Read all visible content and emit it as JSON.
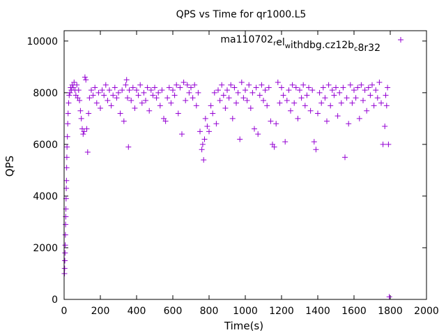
{
  "chart_data": {
    "type": "scatter",
    "title": "QPS vs Time for qr1000.L5",
    "xlabel": "Time(s)",
    "ylabel": "QPS",
    "xlim": [
      0,
      2000
    ],
    "ylim": [
      0,
      10400
    ],
    "xticks": [
      0,
      200,
      400,
      600,
      800,
      1000,
      1200,
      1400,
      1600,
      1800,
      2000
    ],
    "yticks": [
      0,
      2000,
      4000,
      6000,
      8000,
      10000
    ],
    "grid": false,
    "legend_position": "top-right",
    "marker": "plus",
    "series": [
      {
        "name_parts": [
          {
            "text": "ma110702",
            "sub": false
          },
          {
            "text": "r",
            "sub": true
          },
          {
            "text": "el",
            "sub": false
          },
          {
            "text": "w",
            "sub": true
          },
          {
            "text": "ithdbg.cz12b",
            "sub": false
          },
          {
            "text": "c",
            "sub": true
          },
          {
            "text": "8r32",
            "sub": false
          }
        ],
        "color": "#9400d3",
        "points": [
          [
            2,
            1000
          ],
          [
            3,
            1200
          ],
          [
            4,
            1500
          ],
          [
            5,
            1800
          ],
          [
            6,
            2100
          ],
          [
            7,
            2500
          ],
          [
            8,
            2900
          ],
          [
            9,
            3200
          ],
          [
            10,
            3500
          ],
          [
            11,
            3900
          ],
          [
            12,
            4300
          ],
          [
            13,
            4600
          ],
          [
            14,
            5100
          ],
          [
            15,
            5500
          ],
          [
            16,
            5900
          ],
          [
            18,
            6300
          ],
          [
            20,
            6800
          ],
          [
            22,
            7200
          ],
          [
            25,
            7600
          ],
          [
            28,
            7900
          ],
          [
            32,
            8000
          ],
          [
            36,
            8200
          ],
          [
            40,
            8100
          ],
          [
            45,
            8300
          ],
          [
            50,
            8200
          ],
          [
            55,
            8400
          ],
          [
            60,
            8100
          ],
          [
            65,
            7900
          ],
          [
            70,
            8300
          ],
          [
            75,
            7800
          ],
          [
            80,
            8100
          ],
          [
            85,
            7700
          ],
          [
            90,
            7300
          ],
          [
            95,
            7000
          ],
          [
            100,
            6600
          ],
          [
            105,
            6400
          ],
          [
            110,
            6500
          ],
          [
            115,
            8600
          ],
          [
            120,
            8500
          ],
          [
            125,
            6600
          ],
          [
            130,
            5700
          ],
          [
            135,
            7200
          ],
          [
            140,
            7800
          ],
          [
            150,
            8100
          ],
          [
            160,
            7900
          ],
          [
            170,
            8200
          ],
          [
            180,
            7600
          ],
          [
            190,
            8000
          ],
          [
            200,
            7400
          ],
          [
            210,
            8100
          ],
          [
            220,
            7900
          ],
          [
            230,
            8300
          ],
          [
            240,
            7700
          ],
          [
            250,
            8100
          ],
          [
            260,
            7500
          ],
          [
            270,
            7900
          ],
          [
            280,
            8200
          ],
          [
            290,
            7800
          ],
          [
            300,
            8000
          ],
          [
            310,
            7200
          ],
          [
            320,
            8100
          ],
          [
            330,
            6900
          ],
          [
            340,
            8300
          ],
          [
            345,
            8500
          ],
          [
            350,
            7800
          ],
          [
            355,
            5900
          ],
          [
            360,
            8100
          ],
          [
            370,
            7700
          ],
          [
            380,
            8200
          ],
          [
            390,
            7400
          ],
          [
            400,
            8100
          ],
          [
            410,
            7900
          ],
          [
            420,
            8300
          ],
          [
            430,
            7600
          ],
          [
            440,
            8000
          ],
          [
            450,
            7700
          ],
          [
            460,
            8200
          ],
          [
            470,
            7300
          ],
          [
            480,
            8100
          ],
          [
            490,
            7900
          ],
          [
            500,
            8200
          ],
          [
            510,
            7800
          ],
          [
            520,
            8000
          ],
          [
            530,
            7500
          ],
          [
            540,
            8100
          ],
          [
            550,
            7000
          ],
          [
            560,
            6900
          ],
          [
            570,
            7800
          ],
          [
            580,
            8200
          ],
          [
            590,
            7600
          ],
          [
            600,
            8100
          ],
          [
            610,
            7900
          ],
          [
            620,
            8300
          ],
          [
            630,
            7200
          ],
          [
            640,
            8200
          ],
          [
            650,
            6400
          ],
          [
            660,
            8400
          ],
          [
            670,
            7700
          ],
          [
            680,
            8300
          ],
          [
            690,
            8000
          ],
          [
            700,
            8200
          ],
          [
            710,
            7800
          ],
          [
            720,
            8300
          ],
          [
            730,
            7500
          ],
          [
            740,
            8000
          ],
          [
            750,
            6500
          ],
          [
            760,
            5800
          ],
          [
            765,
            6000
          ],
          [
            770,
            5400
          ],
          [
            775,
            6200
          ],
          [
            780,
            7000
          ],
          [
            790,
            6700
          ],
          [
            800,
            6500
          ],
          [
            810,
            7500
          ],
          [
            820,
            7200
          ],
          [
            830,
            8000
          ],
          [
            840,
            6800
          ],
          [
            850,
            8100
          ],
          [
            860,
            7700
          ],
          [
            870,
            8300
          ],
          [
            880,
            7900
          ],
          [
            890,
            7400
          ],
          [
            900,
            8100
          ],
          [
            910,
            7800
          ],
          [
            920,
            8300
          ],
          [
            930,
            7000
          ],
          [
            940,
            8200
          ],
          [
            950,
            7600
          ],
          [
            960,
            8000
          ],
          [
            970,
            6200
          ],
          [
            980,
            8400
          ],
          [
            990,
            7800
          ],
          [
            1000,
            8100
          ],
          [
            1010,
            7700
          ],
          [
            1020,
            8300
          ],
          [
            1030,
            7400
          ],
          [
            1040,
            8000
          ],
          [
            1050,
            6600
          ],
          [
            1060,
            8200
          ],
          [
            1070,
            6400
          ],
          [
            1080,
            7900
          ],
          [
            1090,
            8300
          ],
          [
            1100,
            7700
          ],
          [
            1110,
            8100
          ],
          [
            1120,
            7500
          ],
          [
            1130,
            8200
          ],
          [
            1140,
            6900
          ],
          [
            1150,
            6000
          ],
          [
            1160,
            5900
          ],
          [
            1170,
            6800
          ],
          [
            1180,
            8400
          ],
          [
            1190,
            7600
          ],
          [
            1200,
            8200
          ],
          [
            1210,
            7900
          ],
          [
            1220,
            6100
          ],
          [
            1230,
            7700
          ],
          [
            1240,
            8100
          ],
          [
            1250,
            7300
          ],
          [
            1260,
            8300
          ],
          [
            1270,
            7600
          ],
          [
            1280,
            8200
          ],
          [
            1290,
            7000
          ],
          [
            1300,
            8100
          ],
          [
            1310,
            7800
          ],
          [
            1320,
            8300
          ],
          [
            1330,
            7500
          ],
          [
            1340,
            7900
          ],
          [
            1350,
            8200
          ],
          [
            1360,
            7300
          ],
          [
            1370,
            8100
          ],
          [
            1380,
            6100
          ],
          [
            1390,
            5800
          ],
          [
            1400,
            7200
          ],
          [
            1410,
            8000
          ],
          [
            1420,
            7600
          ],
          [
            1430,
            8200
          ],
          [
            1440,
            7800
          ],
          [
            1450,
            6900
          ],
          [
            1460,
            8300
          ],
          [
            1470,
            7500
          ],
          [
            1480,
            8100
          ],
          [
            1490,
            7900
          ],
          [
            1500,
            8200
          ],
          [
            1510,
            7100
          ],
          [
            1520,
            8000
          ],
          [
            1530,
            7600
          ],
          [
            1540,
            8200
          ],
          [
            1550,
            5500
          ],
          [
            1560,
            7800
          ],
          [
            1570,
            6800
          ],
          [
            1580,
            8300
          ],
          [
            1590,
            7600
          ],
          [
            1600,
            8100
          ],
          [
            1610,
            7800
          ],
          [
            1620,
            8200
          ],
          [
            1630,
            7000
          ],
          [
            1640,
            8300
          ],
          [
            1650,
            7700
          ],
          [
            1660,
            8100
          ],
          [
            1670,
            7300
          ],
          [
            1680,
            8200
          ],
          [
            1690,
            7900
          ],
          [
            1700,
            8300
          ],
          [
            1710,
            7500
          ],
          [
            1720,
            8100
          ],
          [
            1730,
            7800
          ],
          [
            1740,
            8400
          ],
          [
            1750,
            7600
          ],
          [
            1760,
            6000
          ],
          [
            1770,
            6700
          ],
          [
            1775,
            7900
          ],
          [
            1780,
            7500
          ],
          [
            1785,
            8200
          ],
          [
            1790,
            6000
          ],
          [
            1795,
            100
          ]
        ]
      }
    ]
  }
}
